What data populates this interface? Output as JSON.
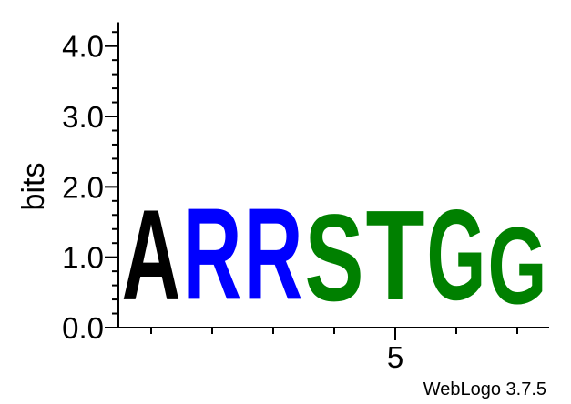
{
  "chart_data": {
    "type": "sequence-logo",
    "ylabel": "bits",
    "ylim": [
      0,
      4.3
    ],
    "yticks": [
      {
        "value": 0,
        "label": "0.0"
      },
      {
        "value": 1,
        "label": "1.0"
      },
      {
        "value": 2,
        "label": "2.0"
      },
      {
        "value": 3,
        "label": "3.0"
      },
      {
        "value": 4,
        "label": "4.0"
      }
    ],
    "y_minor_step": 0.2,
    "positions": [
      1,
      2,
      3,
      4,
      5,
      6,
      7
    ],
    "xtick_labels": [
      {
        "position": 5,
        "label": "5"
      }
    ],
    "stacks": [
      {
        "position": 1,
        "letters": [
          {
            "char": "A",
            "bits": 2.05,
            "color": "#000000"
          }
        ]
      },
      {
        "position": 2,
        "letters": [
          {
            "char": "R",
            "bits": 2.08,
            "color": "#0000ff"
          }
        ]
      },
      {
        "position": 3,
        "letters": [
          {
            "char": "R",
            "bits": 2.08,
            "color": "#0000ff"
          }
        ]
      },
      {
        "position": 4,
        "letters": [
          {
            "char": "S",
            "bits": 1.97,
            "color": "#008000"
          }
        ]
      },
      {
        "position": 5,
        "letters": [
          {
            "char": "T",
            "bits": 2.04,
            "color": "#008000"
          }
        ]
      },
      {
        "position": 6,
        "letters": [
          {
            "char": "G",
            "bits": 2.05,
            "color": "#008000"
          }
        ]
      },
      {
        "position": 7,
        "letters": [
          {
            "char": "G",
            "bits": 1.73,
            "color": "#008000"
          }
        ]
      }
    ],
    "credit": "WebLogo 3.7.5"
  }
}
